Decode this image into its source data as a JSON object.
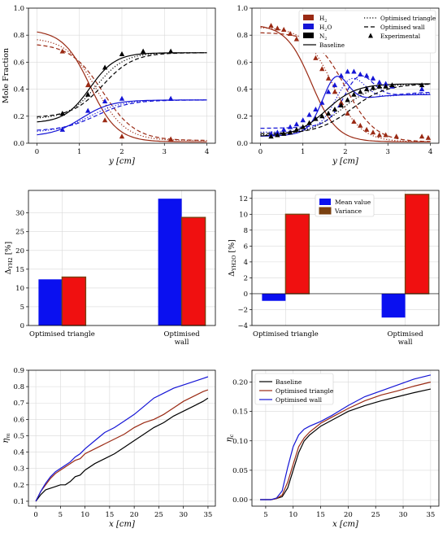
{
  "colors": {
    "h2": "#9a2a14",
    "h2o": "#1515d6",
    "n2": "#000000",
    "mean": "#0a10f0",
    "variance": "#f01010",
    "variance_edge": "#7a4010",
    "baseline": "#000000",
    "triangle": "#9a2a14",
    "wall": "#1515d6",
    "grid": "#d9d9d9"
  },
  "chart_data": [
    {
      "type": "line",
      "panel": "mole-fraction-left",
      "xlabel": "y [cm]",
      "ylabel": "Mole Fraction",
      "xlim": [
        -0.2,
        4.2
      ],
      "ylim": [
        0,
        1
      ],
      "xticks": [
        "0",
        "1",
        "2",
        "3",
        "4"
      ],
      "yticks": [
        "0.0",
        "0.2",
        "0.4",
        "0.6",
        "0.8",
        "1.0"
      ],
      "grid": true,
      "curves": [
        {
          "species": "H2",
          "style": "solid",
          "shape": "fall",
          "start": 0.84,
          "end": 0.01,
          "center": 1.25,
          "width": 0.32
        },
        {
          "species": "H2",
          "style": "dotted",
          "shape": "fall",
          "start": 0.78,
          "end": 0.02,
          "center": 1.4,
          "width": 0.35
        },
        {
          "species": "H2",
          "style": "dashed",
          "shape": "fall",
          "start": 0.74,
          "end": 0.02,
          "center": 1.55,
          "width": 0.38
        },
        {
          "species": "H2O",
          "style": "solid",
          "shape": "rise",
          "start": 0.05,
          "end": 0.32,
          "center": 1.05,
          "width": 0.35
        },
        {
          "species": "H2O",
          "style": "dotted",
          "shape": "rise",
          "start": 0.08,
          "end": 0.32,
          "center": 1.25,
          "width": 0.38
        },
        {
          "species": "H2O",
          "style": "dashed",
          "shape": "rise",
          "start": 0.09,
          "end": 0.32,
          "center": 1.4,
          "width": 0.4
        },
        {
          "species": "N2",
          "style": "solid",
          "shape": "rise",
          "start": 0.15,
          "end": 0.67,
          "center": 1.25,
          "width": 0.3
        },
        {
          "species": "N2",
          "style": "dotted",
          "shape": "rise",
          "start": 0.18,
          "end": 0.67,
          "center": 1.4,
          "width": 0.33
        },
        {
          "species": "N2",
          "style": "dashed",
          "shape": "rise",
          "start": 0.19,
          "end": 0.67,
          "center": 1.55,
          "width": 0.36
        }
      ],
      "markers": [
        {
          "species": "H2",
          "x": [
            0.6,
            1.2,
            1.6,
            2.0,
            3.15
          ],
          "y": [
            0.68,
            0.43,
            0.17,
            0.05,
            0.03
          ]
        },
        {
          "species": "H2O",
          "x": [
            0.6,
            1.2,
            1.6,
            2.0,
            3.15
          ],
          "y": [
            0.1,
            0.24,
            0.31,
            0.33,
            0.33
          ]
        },
        {
          "species": "N2",
          "x": [
            0.6,
            1.2,
            1.6,
            2.0,
            2.5,
            3.15
          ],
          "y": [
            0.22,
            0.36,
            0.56,
            0.66,
            0.68,
            0.68
          ]
        }
      ]
    },
    {
      "type": "line",
      "panel": "mole-fraction-right",
      "xlabel": "y [cm]",
      "ylabel": "",
      "xlim": [
        -0.2,
        4.2
      ],
      "ylim": [
        0,
        1
      ],
      "xticks": [
        "0",
        "1",
        "2",
        "3",
        "4"
      ],
      "yticks": [
        "0.0",
        "0.2",
        "0.4",
        "0.6",
        "0.8",
        "1.0"
      ],
      "grid": true,
      "legend": {
        "placement": "top-right",
        "entries": [
          {
            "kind": "H2",
            "label_main": "H",
            "label_sub": "2"
          },
          {
            "kind": "H2O",
            "label_main": "H",
            "label_sub": "2",
            "label_tail": "O"
          },
          {
            "kind": "N2",
            "label_main": "N",
            "label_sub": "2"
          },
          {
            "kind": "baseline",
            "label_main": "Baseline"
          },
          {
            "kind": "triangle",
            "label_main": "Optimised triangle"
          },
          {
            "kind": "wall",
            "label_main": "Optimised wall"
          },
          {
            "kind": "experimental",
            "label_main": "Experimental"
          }
        ]
      },
      "curves": [
        {
          "species": "H2",
          "style": "solid",
          "shape": "fall",
          "start": 0.88,
          "end": 0.01,
          "center": 1.2,
          "width": 0.3
        },
        {
          "species": "H2",
          "style": "dotted",
          "shape": "fall",
          "start": 0.86,
          "end": 0.01,
          "center": 1.7,
          "width": 0.33
        },
        {
          "species": "H2",
          "style": "dashed",
          "shape": "fall",
          "start": 0.82,
          "end": 0.01,
          "center": 2.0,
          "width": 0.35
        },
        {
          "species": "H2O",
          "style": "solid",
          "shape": "hump",
          "start": 0.05,
          "end": 0.36,
          "peak": 0.52,
          "center": 1.75,
          "width": 0.35
        },
        {
          "species": "H2O",
          "style": "dotted",
          "shape": "hump",
          "start": 0.08,
          "end": 0.37,
          "peak": 0.5,
          "center": 2.1,
          "width": 0.4
        },
        {
          "species": "H2O",
          "style": "dashed",
          "shape": "hump",
          "start": 0.11,
          "end": 0.38,
          "peak": 0.52,
          "center": 2.3,
          "width": 0.4
        },
        {
          "species": "N2",
          "style": "solid",
          "shape": "rise",
          "start": 0.05,
          "end": 0.44,
          "center": 1.55,
          "width": 0.35
        },
        {
          "species": "N2",
          "style": "dotted",
          "shape": "rise",
          "start": 0.06,
          "end": 0.44,
          "center": 1.9,
          "width": 0.38
        },
        {
          "species": "N2",
          "style": "dashed",
          "shape": "rise",
          "start": 0.07,
          "end": 0.44,
          "center": 2.15,
          "width": 0.4
        }
      ],
      "markers": [
        {
          "species": "H2",
          "x": [
            0.25,
            0.4,
            0.55,
            0.7,
            0.85,
            1.0,
            1.15,
            1.3,
            1.45,
            1.6,
            1.75,
            1.9,
            2.05,
            2.2,
            2.35,
            2.5,
            2.65,
            2.8,
            2.95,
            3.2,
            3.8,
            3.95
          ],
          "y": [
            0.87,
            0.85,
            0.84,
            0.81,
            0.77,
            0.74,
            0.69,
            0.63,
            0.55,
            0.48,
            0.38,
            0.3,
            0.22,
            0.16,
            0.13,
            0.1,
            0.08,
            0.06,
            0.06,
            0.05,
            0.05,
            0.04
          ]
        },
        {
          "species": "H2O",
          "x": [
            0.25,
            0.4,
            0.55,
            0.7,
            0.85,
            1.0,
            1.15,
            1.3,
            1.45,
            1.6,
            1.75,
            1.9,
            2.05,
            2.2,
            2.35,
            2.5,
            2.65,
            2.8,
            2.95,
            3.1,
            3.8
          ],
          "y": [
            0.07,
            0.08,
            0.1,
            0.12,
            0.14,
            0.17,
            0.21,
            0.25,
            0.3,
            0.38,
            0.43,
            0.5,
            0.53,
            0.53,
            0.51,
            0.5,
            0.48,
            0.45,
            0.44,
            0.42,
            0.4
          ]
        },
        {
          "species": "N2",
          "x": [
            0.25,
            0.4,
            0.55,
            0.7,
            0.85,
            1.0,
            1.15,
            1.3,
            1.45,
            1.6,
            1.75,
            1.9,
            2.05,
            2.2,
            2.35,
            2.5,
            2.65,
            2.8,
            2.95,
            3.1,
            3.8
          ],
          "y": [
            0.05,
            0.06,
            0.07,
            0.08,
            0.1,
            0.12,
            0.15,
            0.18,
            0.2,
            0.22,
            0.25,
            0.28,
            0.32,
            0.36,
            0.38,
            0.4,
            0.41,
            0.42,
            0.42,
            0.43,
            0.43
          ]
        }
      ]
    },
    {
      "type": "bar",
      "panel": "delta-h2",
      "ylabel_main": "Δ",
      "ylabel_sub": "YH2",
      "ylabel_unit": "[%]",
      "categories": [
        "Optimised triangle",
        "Optimised\nwall"
      ],
      "series": [
        {
          "kind": "mean",
          "values": [
            12.3,
            33.8
          ]
        },
        {
          "kind": "variance",
          "values": [
            12.9,
            28.8
          ]
        }
      ],
      "ylim": [
        0,
        36
      ],
      "yticks": [
        "0",
        "5",
        "10",
        "15",
        "20",
        "25",
        "30"
      ],
      "grid": true
    },
    {
      "type": "bar",
      "panel": "delta-h2o",
      "ylabel_main": "Δ",
      "ylabel_sub": "YH2O",
      "ylabel_unit": "[%]",
      "categories": [
        "Optimised triangle",
        "Optimised\nwall"
      ],
      "series": [
        {
          "name": "Mean value",
          "kind": "mean",
          "values": [
            -0.9,
            -3.0
          ]
        },
        {
          "name": "Variance",
          "kind": "variance",
          "values": [
            10.0,
            12.5
          ]
        }
      ],
      "ylim": [
        -4,
        13
      ],
      "yticks": [
        "−4",
        "−2",
        "0",
        "2",
        "4",
        "6",
        "8",
        "10",
        "12"
      ],
      "legend": {
        "placement": "top-center"
      },
      "grid": true
    },
    {
      "type": "line",
      "panel": "eta-m",
      "xlabel": "x [cm]",
      "ylabel_main": "η",
      "ylabel_sub": "m",
      "xlim": [
        -1.5,
        36.5
      ],
      "ylim": [
        0.07,
        0.9
      ],
      "xticks": [
        "0",
        "5",
        "10",
        "15",
        "20",
        "25",
        "30",
        "35"
      ],
      "yticks": [
        "0.1",
        "0.2",
        "0.3",
        "0.4",
        "0.5",
        "0.6",
        "0.7",
        "0.8",
        "0.9"
      ],
      "grid": true,
      "series": [
        {
          "kind": "baseline",
          "x": [
            0,
            1,
            2,
            3,
            4,
            5,
            6,
            7,
            8,
            9,
            10,
            12,
            14,
            16,
            18,
            20,
            22,
            24,
            26,
            28,
            30,
            32,
            34,
            35
          ],
          "y": [
            0.1,
            0.14,
            0.17,
            0.18,
            0.19,
            0.2,
            0.2,
            0.22,
            0.25,
            0.26,
            0.29,
            0.33,
            0.36,
            0.39,
            0.43,
            0.47,
            0.51,
            0.55,
            0.58,
            0.62,
            0.65,
            0.68,
            0.71,
            0.73
          ]
        },
        {
          "kind": "triangle",
          "x": [
            0,
            1,
            2,
            3,
            4,
            5,
            6,
            7,
            8,
            9,
            10,
            12,
            14,
            16,
            18,
            20,
            22,
            24,
            26,
            28,
            30,
            32,
            34,
            35
          ],
          "y": [
            0.1,
            0.16,
            0.2,
            0.24,
            0.27,
            0.29,
            0.31,
            0.33,
            0.35,
            0.36,
            0.39,
            0.42,
            0.45,
            0.48,
            0.51,
            0.55,
            0.58,
            0.6,
            0.63,
            0.67,
            0.71,
            0.74,
            0.77,
            0.78
          ]
        },
        {
          "kind": "wall",
          "x": [
            0,
            1,
            2,
            3,
            4,
            5,
            6,
            7,
            8,
            9,
            10,
            12,
            14,
            16,
            18,
            20,
            22,
            24,
            26,
            28,
            30,
            32,
            34,
            35
          ],
          "y": [
            0.1,
            0.16,
            0.21,
            0.25,
            0.28,
            0.3,
            0.32,
            0.34,
            0.37,
            0.39,
            0.42,
            0.47,
            0.52,
            0.55,
            0.59,
            0.63,
            0.68,
            0.73,
            0.76,
            0.79,
            0.81,
            0.83,
            0.85,
            0.86
          ]
        }
      ]
    },
    {
      "type": "line",
      "panel": "eta-c",
      "xlabel": "x [cm]",
      "ylabel_main": "η",
      "ylabel_sub": "c",
      "xlim": [
        2.5,
        36.5
      ],
      "ylim": [
        -0.011,
        0.22
      ],
      "xticks": [
        "5",
        "10",
        "15",
        "20",
        "25",
        "30",
        "35"
      ],
      "yticks": [
        "0.00",
        "0.05",
        "0.10",
        "0.15",
        "0.20"
      ],
      "grid": true,
      "legend": {
        "placement": "top-left",
        "entries": [
          {
            "kind": "baseline",
            "label": "Baseline"
          },
          {
            "kind": "triangle",
            "label": "Optimised triangle"
          },
          {
            "kind": "wall",
            "label": "Optimised wall"
          }
        ]
      },
      "series": [
        {
          "kind": "baseline",
          "x": [
            4,
            6,
            7,
            8,
            9,
            10,
            11,
            12,
            13,
            15,
            17,
            20,
            23,
            26,
            29,
            32,
            35
          ],
          "y": [
            0,
            0,
            0.002,
            0.005,
            0.02,
            0.05,
            0.08,
            0.1,
            0.11,
            0.125,
            0.135,
            0.15,
            0.16,
            0.168,
            0.175,
            0.182,
            0.188
          ]
        },
        {
          "kind": "triangle",
          "x": [
            4,
            6,
            7,
            8,
            9,
            10,
            11,
            12,
            13,
            15,
            17,
            20,
            23,
            26,
            29,
            32,
            35
          ],
          "y": [
            0,
            0,
            0.002,
            0.008,
            0.03,
            0.06,
            0.09,
            0.105,
            0.115,
            0.13,
            0.14,
            0.155,
            0.168,
            0.178,
            0.185,
            0.193,
            0.2
          ]
        },
        {
          "kind": "wall",
          "x": [
            4,
            6,
            7,
            8,
            9,
            10,
            11,
            12,
            13,
            15,
            17,
            20,
            23,
            26,
            29,
            32,
            35
          ],
          "y": [
            0,
            0,
            0.003,
            0.015,
            0.055,
            0.09,
            0.11,
            0.12,
            0.125,
            0.133,
            0.143,
            0.16,
            0.175,
            0.185,
            0.195,
            0.205,
            0.212
          ]
        }
      ]
    }
  ]
}
